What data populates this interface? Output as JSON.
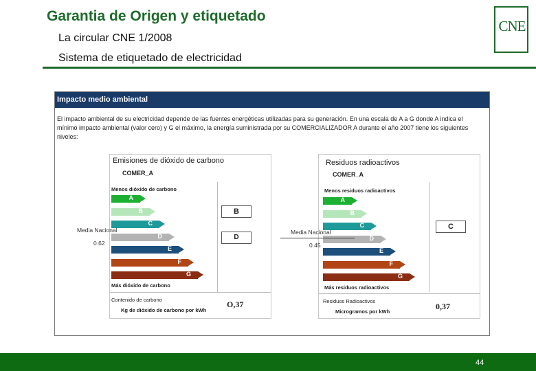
{
  "header": {
    "title": "Garantia de Origen y etiquetado",
    "subtitle1": "La circular CNE 1/2008",
    "subtitle2": "Sistema de etiquetado de electricidad",
    "logo": "CNE"
  },
  "panel": {
    "heading": "Impacto medio ambiental",
    "intro": "El impacto ambiental de su electricidad depende de las fuentes energéticas utilizadas para su generación. En una escala de A a G donde A indica el mínimo impacto ambiental (valor cero) y G el máximo, la energía suministrada por su COMERCIALIZADOR A durante el año 2007 tiene los siguientes niveles:"
  },
  "co2": {
    "title": "Emisiones de dióxido de carbono",
    "company": "COMER_A",
    "top_label": "Menos dióxido de carbono",
    "bottom_label": "Más dióxido de carbono",
    "letters": [
      "A",
      "B",
      "C",
      "D",
      "E",
      "F",
      "G"
    ],
    "company_grade": "B",
    "media_label": "Media Nacional",
    "media_value": "0.62",
    "media_grade": "D",
    "footer_label1": "Contenido de carbono",
    "footer_label2": "Kg de dióxido de carbono por kWh",
    "footer_value": "O,37"
  },
  "rad": {
    "title": "Residuos radioactivos",
    "company": "COMER_A",
    "top_label": "Menos residuos radioactivos",
    "bottom_label": "Más residuos radioactivos",
    "letters": [
      "A",
      "B",
      "C",
      "D",
      "E",
      "F",
      "G"
    ],
    "company_grade": "C",
    "media_label": "Media Nacional",
    "media_value": "0.45",
    "media_grade": "D",
    "footer_label1": "Residuos Radioactivos",
    "footer_label2": "Microgramos por kWh",
    "footer_value": "0,37"
  },
  "colors": {
    "brand_green": "#1d6b2a",
    "panel_header": "#1a3a68",
    "grade_A": "#1db033",
    "grade_B": "#b5e6b9",
    "grade_C": "#1f9a9a",
    "grade_D": "#b3b3b3",
    "grade_E": "#1c4f7c",
    "grade_F": "#b24516",
    "grade_G": "#8b2d14"
  },
  "footer": {
    "page": "44"
  }
}
